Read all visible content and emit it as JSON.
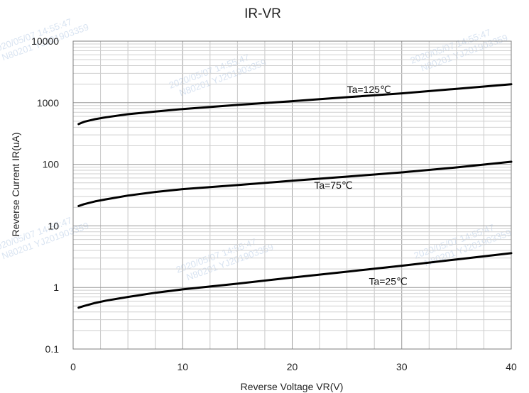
{
  "chart_data": {
    "type": "line",
    "title": "IR-VR",
    "xlabel": "Reverse Voltage   VR(V)",
    "ylabel": "Reverse Current   IR(uA)",
    "x_scale": "linear",
    "y_scale": "log",
    "xlim": [
      0,
      40
    ],
    "ylim": [
      0.1,
      10000
    ],
    "x_ticks": [
      "0",
      "10",
      "20",
      "30",
      "40"
    ],
    "y_ticks": [
      "0.1",
      "1",
      "10",
      "100",
      "1000",
      "10000"
    ],
    "grid": true,
    "series": [
      {
        "name": "Ta=125℃",
        "color": "#000000",
        "points": [
          [
            0.5,
            450
          ],
          [
            1,
            490
          ],
          [
            2,
            540
          ],
          [
            3,
            580
          ],
          [
            5,
            650
          ],
          [
            7.5,
            720
          ],
          [
            10,
            790
          ],
          [
            15,
            920
          ],
          [
            20,
            1060
          ],
          [
            25,
            1230
          ],
          [
            30,
            1420
          ],
          [
            35,
            1680
          ],
          [
            40,
            2000
          ]
        ]
      },
      {
        "name": "Ta=75℃",
        "color": "#000000",
        "points": [
          [
            0.5,
            21
          ],
          [
            1,
            22.5
          ],
          [
            2,
            25
          ],
          [
            3,
            27
          ],
          [
            5,
            31
          ],
          [
            7.5,
            35.5
          ],
          [
            10,
            39.5
          ],
          [
            15,
            46
          ],
          [
            20,
            54
          ],
          [
            25,
            63
          ],
          [
            30,
            74
          ],
          [
            35,
            89
          ],
          [
            40,
            110
          ]
        ]
      },
      {
        "name": "Ta=25℃",
        "color": "#000000",
        "points": [
          [
            0.5,
            0.47
          ],
          [
            1,
            0.5
          ],
          [
            2,
            0.56
          ],
          [
            3,
            0.61
          ],
          [
            5,
            0.7
          ],
          [
            7.5,
            0.82
          ],
          [
            10,
            0.93
          ],
          [
            15,
            1.15
          ],
          [
            20,
            1.45
          ],
          [
            25,
            1.8
          ],
          [
            30,
            2.25
          ],
          [
            35,
            2.85
          ],
          [
            40,
            3.6
          ]
        ]
      }
    ],
    "series_labels": [
      {
        "text": "Ta=125℃",
        "x": 25,
        "y": 1450
      },
      {
        "text": "Ta=75℃",
        "x": 22,
        "y": 40
      },
      {
        "text": "Ta=25℃",
        "x": 27,
        "y": 1.1
      }
    ]
  },
  "watermark": {
    "line1": "2020/05/07  14:55:47",
    "line2": "N80201  YJ201903359"
  }
}
